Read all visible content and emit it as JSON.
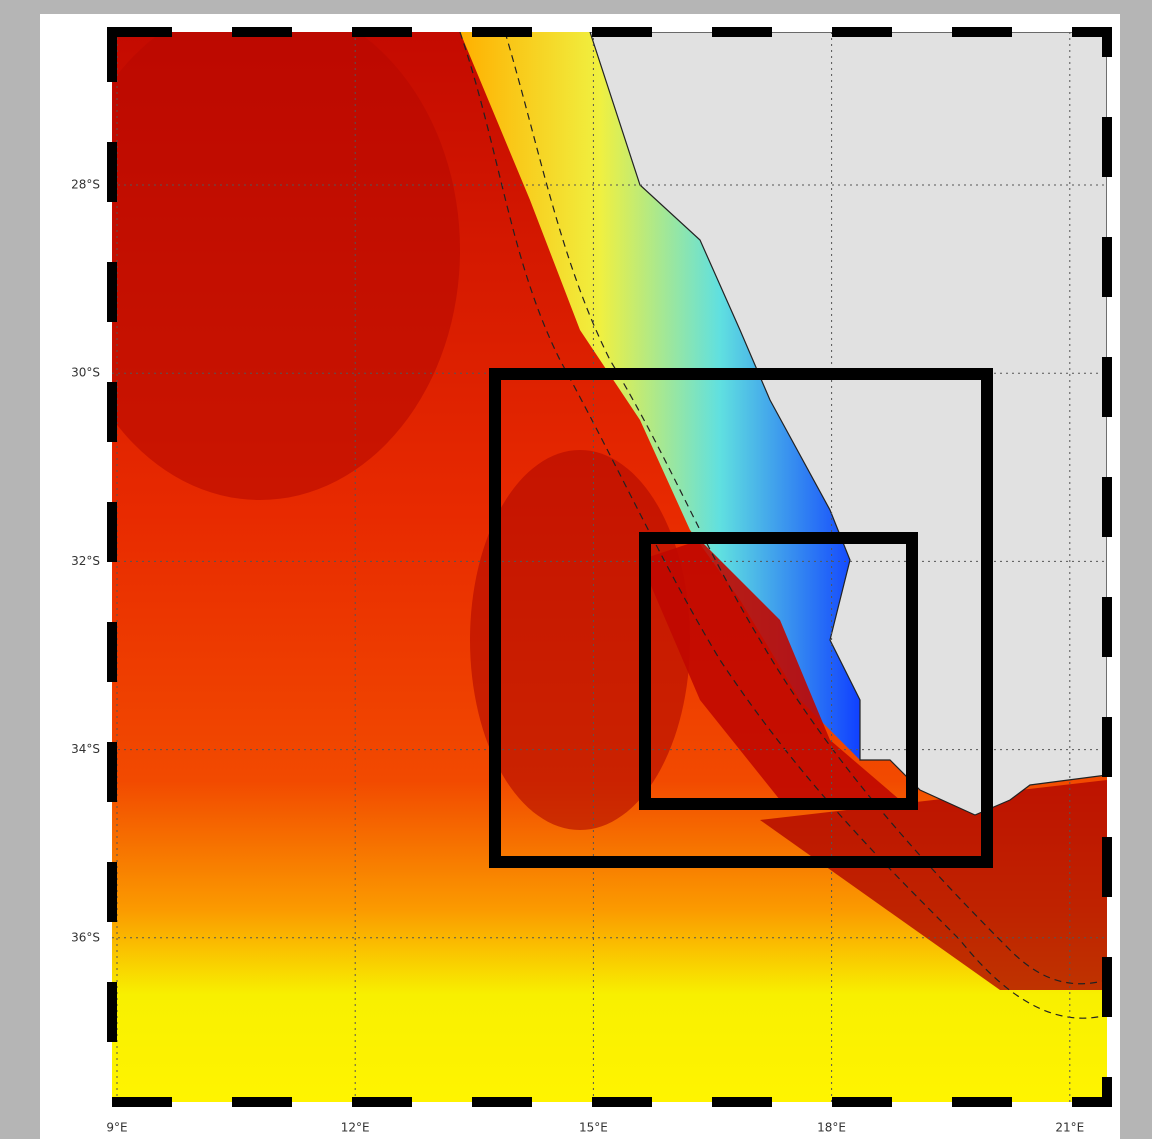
{
  "map": {
    "lat_ticks": [
      {
        "value": -28,
        "label": "28°S"
      },
      {
        "value": -30,
        "label": "30°S"
      },
      {
        "value": -32,
        "label": "32°S"
      },
      {
        "value": -34,
        "label": "34°S"
      },
      {
        "value": -36,
        "label": "36°S"
      }
    ],
    "lon_ticks": [
      {
        "value": 9,
        "label": "9°E"
      },
      {
        "value": 12,
        "label": "12°E"
      },
      {
        "value": 15,
        "label": "15°E"
      },
      {
        "value": 18,
        "label": "18°E"
      },
      {
        "value": 21,
        "label": "21°E"
      }
    ]
  }
}
